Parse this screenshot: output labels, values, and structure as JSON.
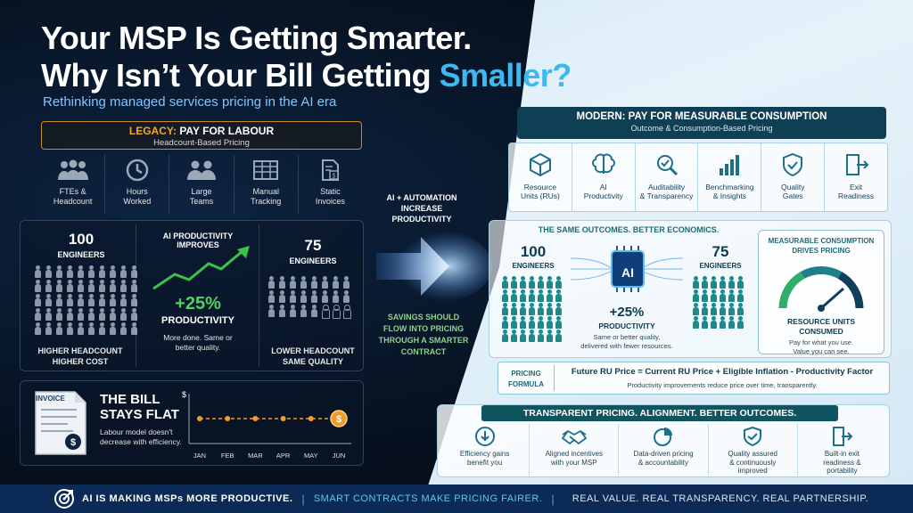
{
  "title": {
    "line1": "Your MSP Is Getting Smarter.",
    "line2_pre": "Why Isn’t Your Bill Getting ",
    "line2_hl": "Smaller?"
  },
  "subtitle": "Rethinking managed services pricing in the AI era",
  "legacy": {
    "header_prefix": "LEGACY:",
    "header_main": " PAY FOR LABOUR",
    "header_sub": "Headcount-Based Pricing",
    "icons": [
      {
        "icon": "people-group-icon",
        "l1": "FTEs &",
        "l2": "Headcount"
      },
      {
        "icon": "clock-icon",
        "l1": "Hours",
        "l2": "Worked"
      },
      {
        "icon": "team-icon",
        "l1": "Large",
        "l2": "Teams"
      },
      {
        "icon": "spreadsheet-icon",
        "l1": "Manual",
        "l2": "Tracking"
      },
      {
        "icon": "invoice-icon",
        "l1": "Static",
        "l2": "Invoices"
      }
    ],
    "left_count": "100",
    "engineers": "ENGINEERS",
    "left_cap1": "HIGHER HEADCOUNT",
    "left_cap2": "HIGHER COST",
    "ai_title": "AI PRODUCTIVITY IMPROVES",
    "pct": "+25%",
    "productivity": "PRODUCTIVITY",
    "more_done1": "More done. Same or",
    "more_done2": "better quality.",
    "right_count": "75",
    "right_cap1": "LOWER HEADCOUNT",
    "right_cap2": "SAME QUALITY",
    "invoice_label": "INVOICE",
    "bill1": "THE BILL",
    "bill2": "STAYS FLAT",
    "bill_desc1": "Labour model doesn't",
    "bill_desc2": "decrease with efficiency.",
    "chart_currency": "$"
  },
  "chart_data": {
    "type": "line",
    "categories": [
      "JAN",
      "FEB",
      "MAR",
      "APR",
      "MAY",
      "JUN"
    ],
    "values": [
      1,
      1,
      1,
      1,
      1,
      1
    ],
    "title": "",
    "ylabel": "$",
    "xlabel": "",
    "color": "#f39a2a"
  },
  "middle": {
    "ai_auto1": "AI + AUTOMATION",
    "ai_auto2": "INCREASE",
    "ai_auto3": "PRODUCTIVITY",
    "savings1": "SAVINGS SHOULD",
    "savings2": "FLOW INTO PRICING",
    "savings3": "THROUGH A SMARTER",
    "savings4": "CONTRACT"
  },
  "modern": {
    "header_main": "MODERN: PAY FOR MEASURABLE CONSUMPTION",
    "header_sub": "Outcome & Consumption-Based Pricing",
    "icons": [
      {
        "icon": "cube-icon",
        "l1": "Resource",
        "l2": "Units (RUs)"
      },
      {
        "icon": "brain-icon",
        "l1": "AI",
        "l2": "Productivity"
      },
      {
        "icon": "magnifier-icon",
        "l1": "Auditability",
        "l2": "& Transparency"
      },
      {
        "icon": "bar-chart-icon",
        "l1": "Benchmarking",
        "l2": "& Insights"
      },
      {
        "icon": "shield-check-icon",
        "l1": "Quality",
        "l2": "Gates"
      },
      {
        "icon": "exit-door-icon",
        "l1": "Exit",
        "l2": "Readiness"
      }
    ],
    "same_outcomes": "THE SAME OUTCOMES. BETTER ECONOMICS.",
    "left_count": "100",
    "engineers": "ENGINEERS",
    "ai_chip": "AI",
    "pct": "+25%",
    "productivity": "PRODUCTIVITY",
    "quality1": "Same or better quality,",
    "quality2": "delivered with fewer resources.",
    "right_count": "75",
    "consume_title1": "MEASURABLE CONSUMPTION",
    "consume_title2": "DRIVES PRICING",
    "ru1": "RESOURCE UNITS",
    "ru2": "CONSUMED",
    "pay1": "Pay for what you use.",
    "pay2": "Value you can see.",
    "pricing": "PRICING",
    "formula_label": "FORMULA",
    "formula": "Future RU Price = Current RU Price + Eligible Inflation - Productivity Factor",
    "formula_sub": "Productivity improvements reduce price over time, transparently.",
    "bottom_head": "TRANSPARENT PRICING. ALIGNMENT. BETTER OUTCOMES.",
    "bottom_icons": [
      {
        "icon": "download-circle-icon",
        "l1": "Efficiency gains",
        "l2": "benefit you",
        "l3": ""
      },
      {
        "icon": "handshake-icon",
        "l1": "Aligned incentives",
        "l2": "with your MSP",
        "l3": ""
      },
      {
        "icon": "pie-chart-icon",
        "l1": "Data-driven pricing",
        "l2": "& accountability",
        "l3": ""
      },
      {
        "icon": "shield-check-icon",
        "l1": "Quality assured",
        "l2": "& continuously",
        "l3": "improved"
      },
      {
        "icon": "exit-door-icon",
        "l1": "Built-in exit",
        "l2": "readiness &",
        "l3": "portability"
      }
    ]
  },
  "footer": {
    "f1": "AI IS MAKING MSPs MORE PRODUCTIVE.",
    "f2": "SMART CONTRACTS MAKE PRICING FAIRER.",
    "f3": "REAL VALUE. REAL TRANSPARENCY. REAL PARTNERSHIP."
  }
}
